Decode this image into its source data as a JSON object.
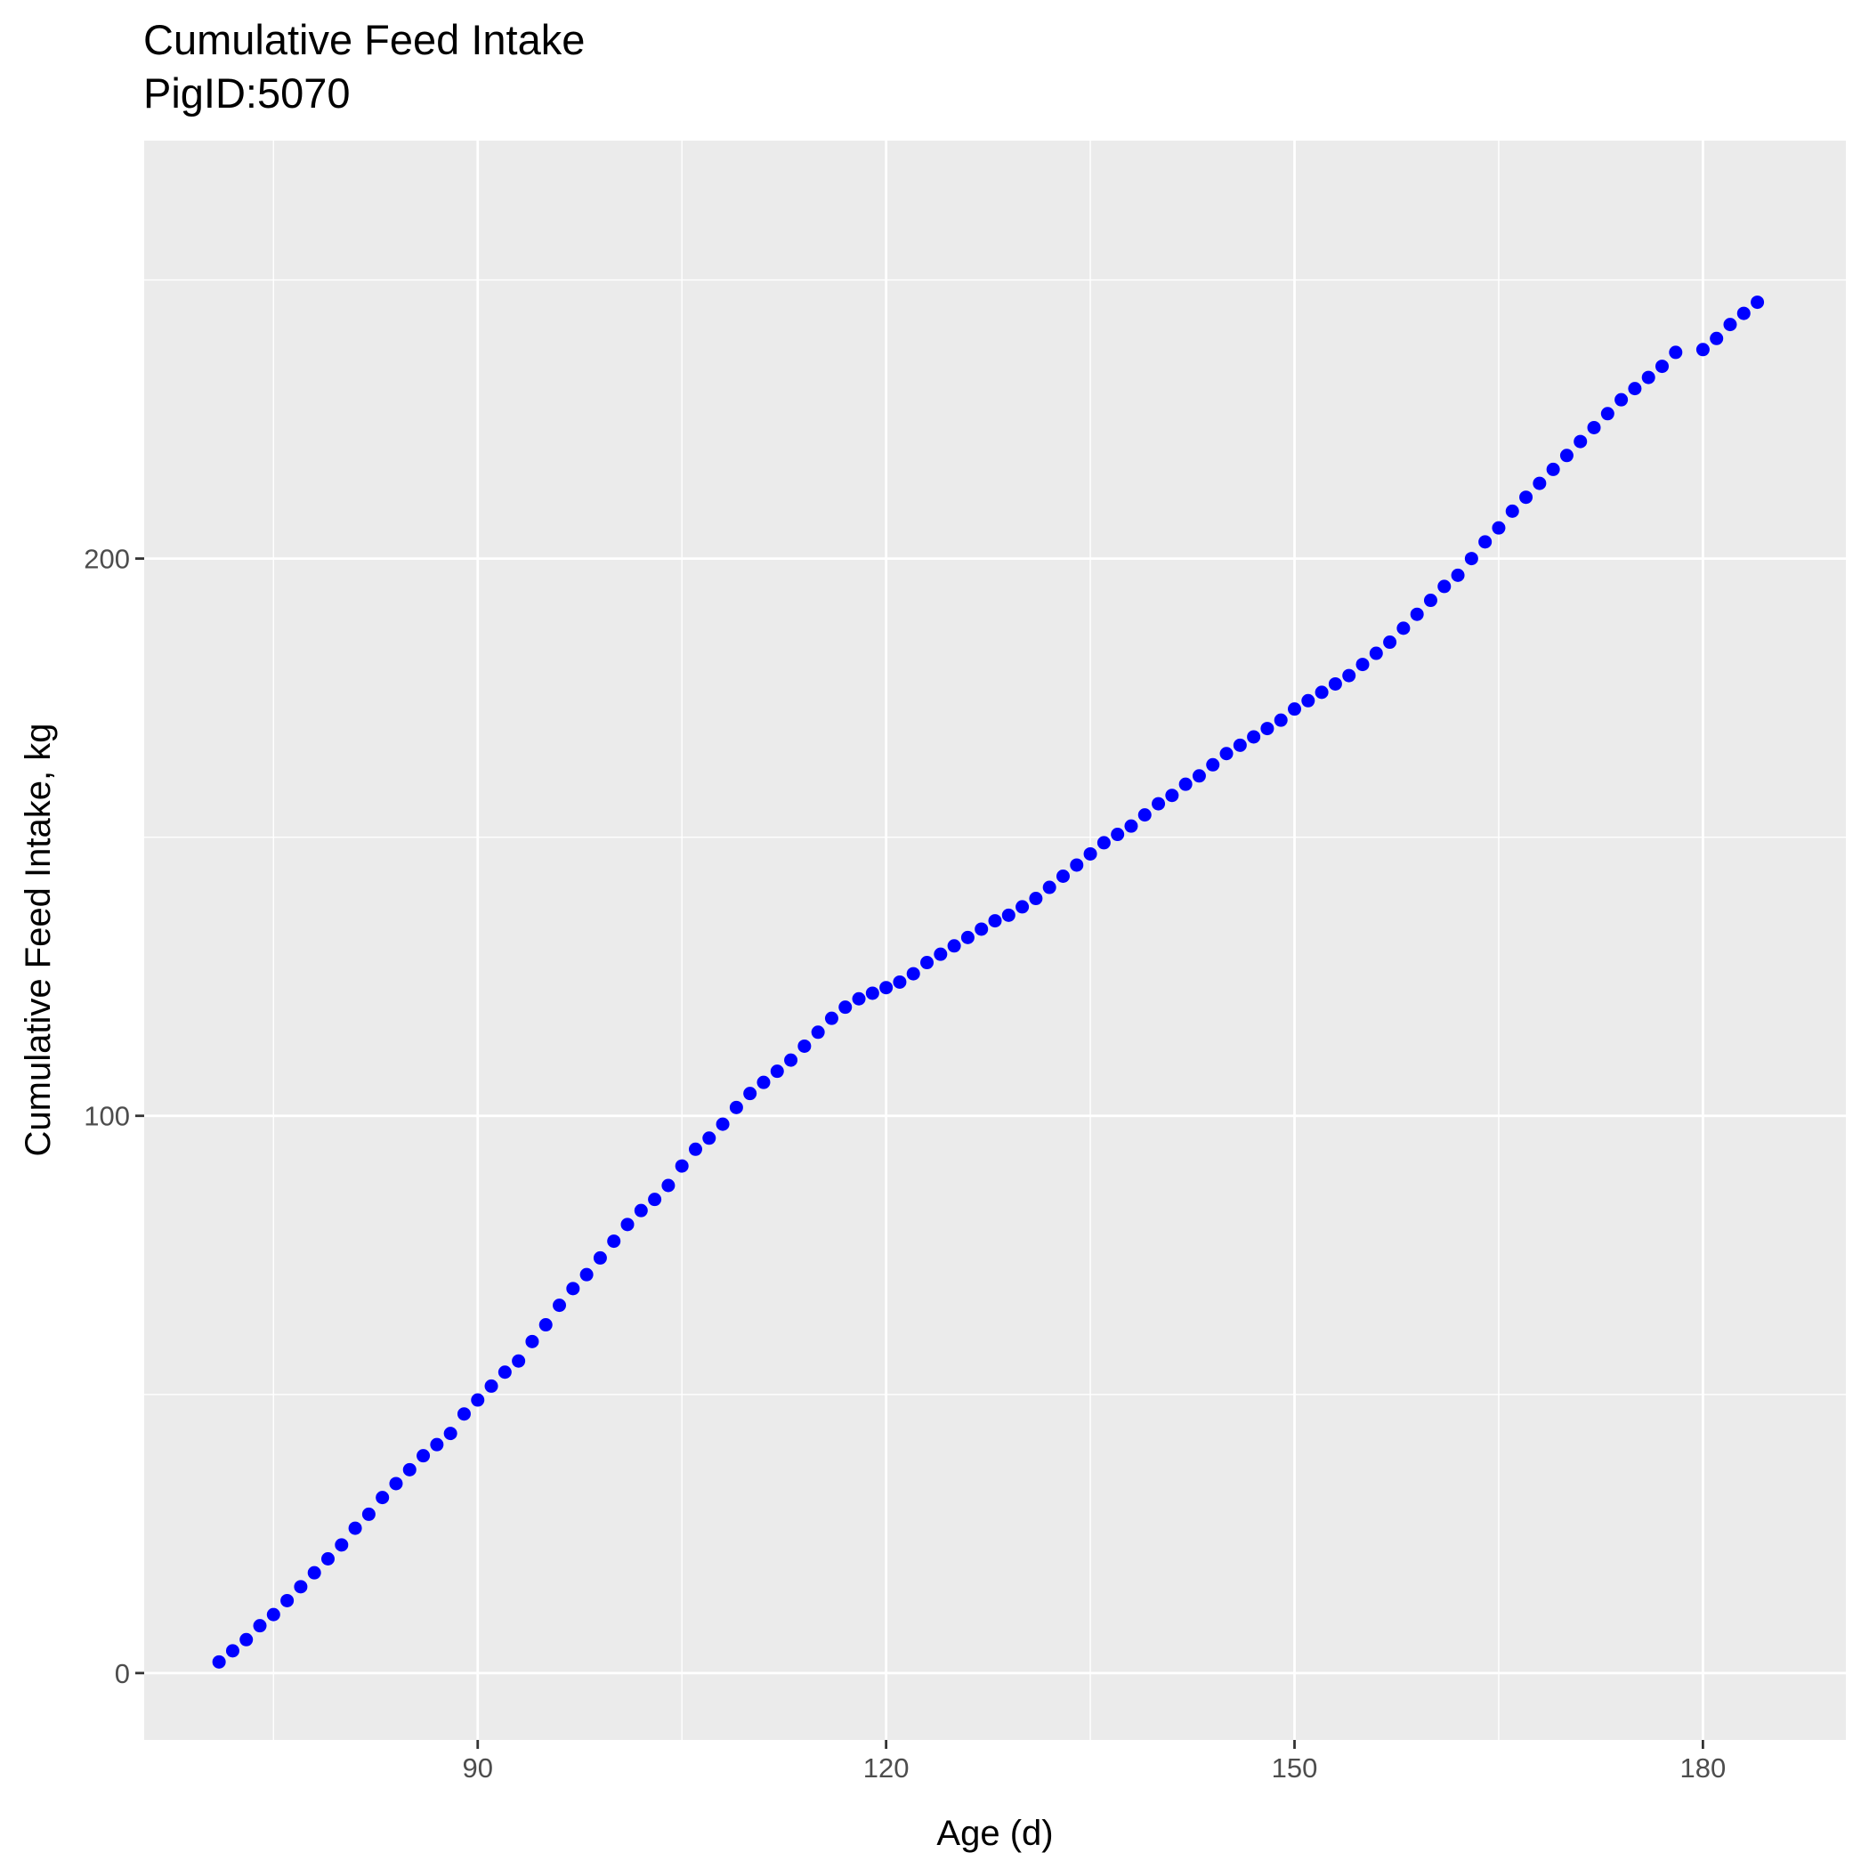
{
  "chart_data": {
    "type": "scatter",
    "title": "Cumulative Feed Intake",
    "subtitle": "PigID:5070",
    "xlabel": "Age (d)",
    "ylabel": "Cumulative Feed Intake, kg",
    "xlim": [
      65.5,
      190.5
    ],
    "ylim": [
      -12,
      275
    ],
    "x_ticks": [
      90,
      120,
      150,
      180
    ],
    "x_tick_labels": [
      "90",
      "120",
      "150",
      "180"
    ],
    "y_ticks": [
      0,
      100,
      200
    ],
    "y_tick_labels": [
      "0",
      "100",
      "200"
    ],
    "grid": true,
    "background": "#ebebeb",
    "grid_color": "#ffffff",
    "point_color": "#0000ff",
    "series": [
      {
        "x": [
          71,
          72,
          73,
          74,
          75,
          76,
          77,
          78,
          79,
          80,
          81,
          82,
          83,
          84,
          85,
          86,
          87,
          88,
          89,
          90,
          91,
          92,
          93,
          94,
          95,
          96,
          97,
          98,
          99,
          100,
          101,
          102,
          103,
          104,
          105,
          106,
          107,
          108,
          109,
          110,
          111,
          112,
          113,
          114,
          115,
          116,
          117,
          118,
          119,
          120,
          121,
          122,
          123,
          124,
          125,
          126,
          127,
          128,
          129,
          130,
          131,
          132,
          133,
          134,
          135,
          136,
          137,
          138,
          139,
          140,
          141,
          142,
          143,
          144,
          145,
          146,
          147,
          148,
          149,
          150,
          151,
          152,
          153,
          154,
          155,
          156,
          157,
          158,
          159,
          160,
          161,
          162,
          163,
          164,
          165,
          166,
          167,
          168,
          169,
          170,
          171,
          172,
          173,
          174,
          175,
          176,
          177,
          178,
          180,
          181,
          182,
          183,
          184
        ],
        "y": [
          2,
          4,
          6,
          8.5,
          10.5,
          13,
          15.5,
          18,
          20.5,
          23,
          26,
          28.5,
          31.5,
          34,
          36.5,
          39,
          41,
          43,
          46.5,
          49,
          51.5,
          54,
          56,
          59.5,
          62.5,
          66,
          69,
          71.5,
          74.5,
          77.5,
          80.5,
          83,
          85,
          87.5,
          91,
          94,
          96,
          98.5,
          101.5,
          104,
          106,
          108,
          110,
          112.5,
          115,
          117.5,
          119.5,
          121,
          122,
          123,
          124,
          125.5,
          127.5,
          129,
          130.5,
          132,
          133.5,
          135,
          136,
          137.5,
          139,
          141,
          143,
          145,
          147,
          149,
          150.5,
          152,
          154,
          156,
          157.5,
          159.5,
          161,
          163,
          165,
          166.5,
          168,
          169.5,
          171,
          173,
          174.5,
          176,
          177.5,
          179,
          181,
          183,
          185,
          187.5,
          190,
          192.5,
          195,
          197,
          200,
          203,
          205.5,
          208.5,
          211,
          213.5,
          216,
          218.5,
          221,
          223.5,
          226,
          228.5,
          230.5,
          232.5,
          234.5,
          237,
          237.5,
          239.5,
          242,
          244,
          246
        ]
      }
    ]
  }
}
